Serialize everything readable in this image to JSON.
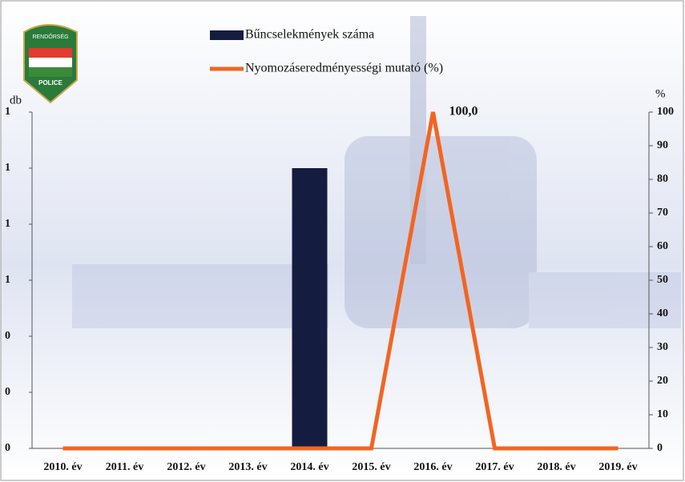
{
  "logo": {
    "top": "RENDŐRSÉG",
    "bottom": "POLICE"
  },
  "chart_data": {
    "type": "bar-line",
    "categories": [
      "2010. év",
      "2011. év",
      "2012. év",
      "2013. év",
      "2014. év",
      "2015. év",
      "2016. év",
      "2017. év",
      "2018. év",
      "2019. év"
    ],
    "series": [
      {
        "name": "Bűncselekmények száma",
        "type": "bar",
        "axis": "y",
        "color": "#141d3f",
        "values": [
          0,
          0,
          0,
          0,
          1,
          0,
          0,
          0,
          0,
          0
        ]
      },
      {
        "name": "Nyomozáseredményességi mutató (%)",
        "type": "line",
        "axis": "y2",
        "color": "#f26522",
        "values": [
          0,
          0,
          0,
          0,
          0,
          0,
          100,
          0,
          0,
          0
        ],
        "value_labels": [
          null,
          null,
          null,
          null,
          null,
          null,
          "100,0",
          null,
          null,
          null
        ]
      }
    ],
    "ylabel": "db",
    "y2label": "%",
    "ylim": [
      0,
      1.2
    ],
    "yticks": [
      {
        "value": 0,
        "label": "0"
      },
      {
        "value": 0.2,
        "label": "0"
      },
      {
        "value": 0.4,
        "label": "0"
      },
      {
        "value": 0.6,
        "label": "1"
      },
      {
        "value": 0.8,
        "label": "1"
      },
      {
        "value": 1.0,
        "label": "1"
      },
      {
        "value": 1.2,
        "label": "1"
      }
    ],
    "y2lim": [
      0,
      100
    ],
    "y2ticks": [
      0,
      10,
      20,
      30,
      40,
      50,
      60,
      70,
      80,
      90,
      100
    ]
  }
}
